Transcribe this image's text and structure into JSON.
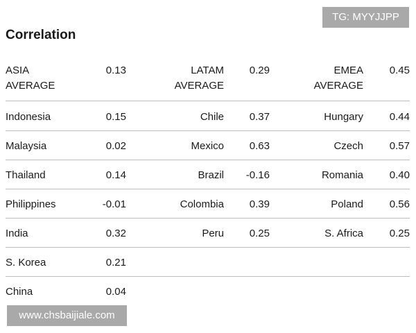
{
  "watermark_top": "TG: MYYJJPP",
  "title": "Correlation",
  "header": {
    "asia_label": "ASIA AVERAGE",
    "asia_value": "0.13",
    "latam_label": "LATAM AVERAGE",
    "latam_value": "0.29",
    "emea_label": "EMEA AVERAGE",
    "emea_value": "0.45"
  },
  "rows": [
    {
      "asia": "Indonesia",
      "asia_v": "0.15",
      "latam": "Chile",
      "latam_v": "0.37",
      "emea": "Hungary",
      "emea_v": "0.44"
    },
    {
      "asia": "Malaysia",
      "asia_v": "0.02",
      "latam": "Mexico",
      "latam_v": "0.63",
      "emea": "Czech",
      "emea_v": "0.57"
    },
    {
      "asia": "Thailand",
      "asia_v": "0.14",
      "latam": "Brazil",
      "latam_v": "-0.16",
      "emea": "Romania",
      "emea_v": "0.40"
    },
    {
      "asia": "Philippines",
      "asia_v": "-0.01",
      "latam": "Colombia",
      "latam_v": "0.39",
      "emea": "Poland",
      "emea_v": "0.56"
    },
    {
      "asia": "India",
      "asia_v": "0.32",
      "latam": "Peru",
      "latam_v": "0.25",
      "emea": "S. Africa",
      "emea_v": "0.25"
    },
    {
      "asia": "S. Korea",
      "asia_v": "0.21"
    },
    {
      "asia": "China",
      "asia_v": "0.04"
    }
  ],
  "watermark_bottom": "www.chsbaijiale.com"
}
